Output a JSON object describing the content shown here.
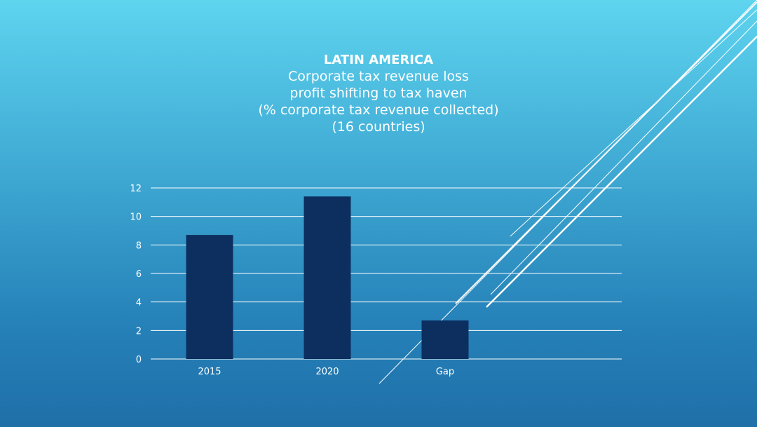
{
  "colors": {
    "bar": "#0c2f5f",
    "grid": "#ffffff",
    "text": "#ffffff",
    "background_top": "#5ed4ef",
    "background_bottom": "#1f6fa8"
  },
  "chart_data": {
    "type": "bar",
    "title_lines": [
      "LATIN AMERICA",
      "Corporate tax revenue loss",
      "profit shifting to tax haven",
      "(% corporate tax revenue collected)",
      "(16 countries)"
    ],
    "categories": [
      "2015",
      "2020",
      "Gap"
    ],
    "values": [
      8.7,
      11.4,
      2.7
    ],
    "ylim": [
      0,
      12
    ],
    "yticks": [
      0,
      2,
      4,
      6,
      8,
      10,
      12
    ],
    "xlabel": "",
    "ylabel": "",
    "grid": true,
    "legend": "none"
  }
}
